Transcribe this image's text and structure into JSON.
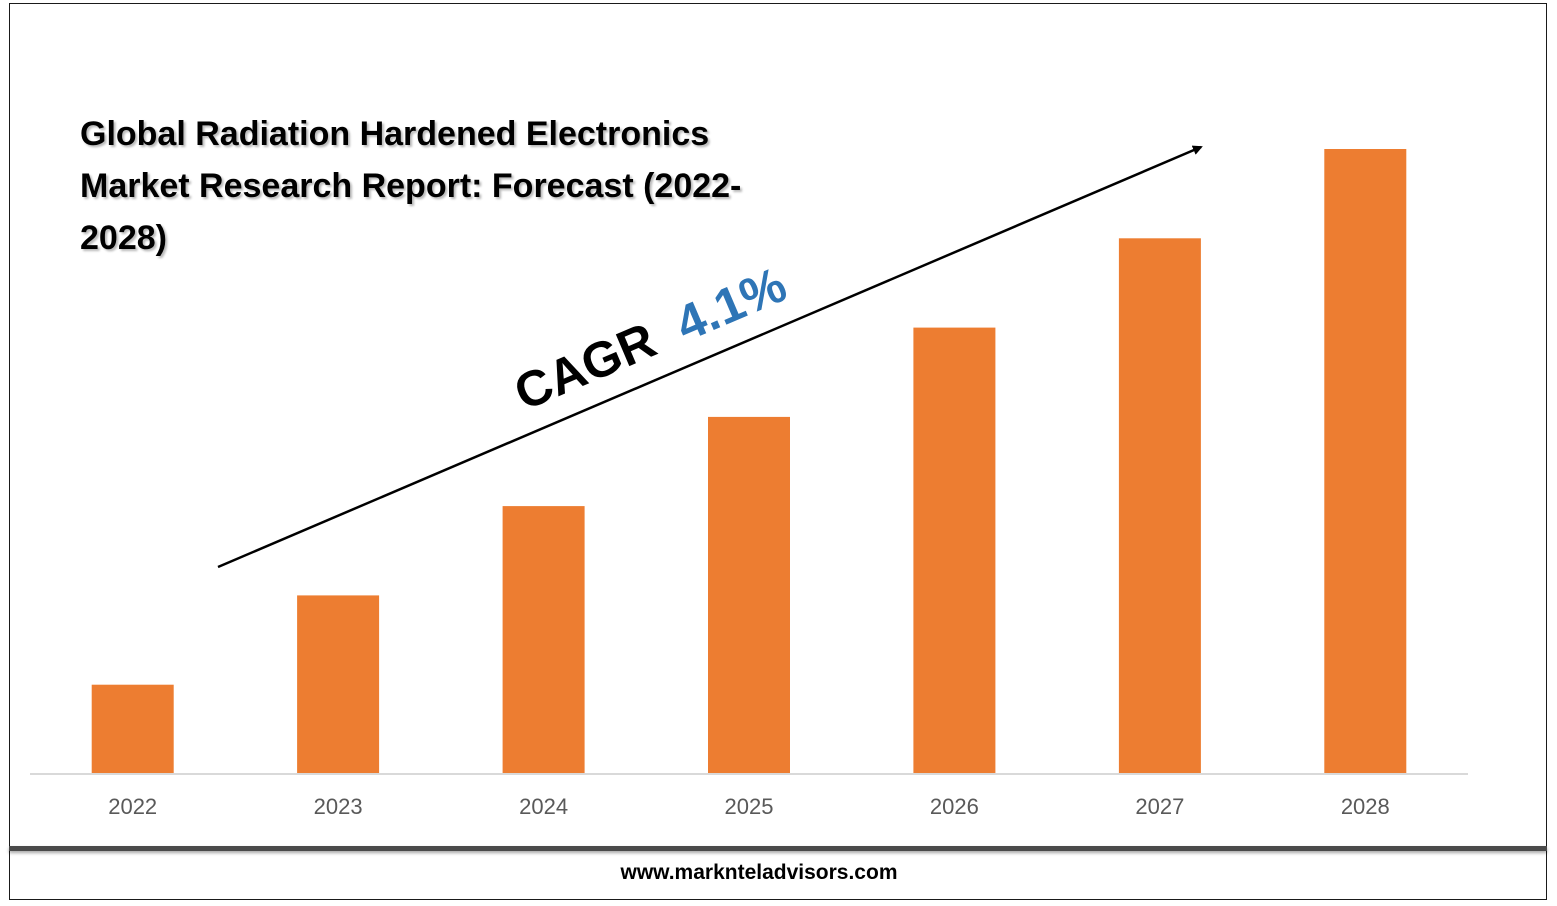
{
  "chart_data": {
    "type": "bar",
    "title": "Global Radiation Hardened Electronics Market Research Report: Forecast (2022-2028)",
    "categories": [
      "2022",
      "2023",
      "2024",
      "2025",
      "2026",
      "2027",
      "2028"
    ],
    "values": [
      1,
      2,
      3,
      4,
      5,
      6,
      7
    ],
    "ylim": [
      0,
      7
    ],
    "grid": false,
    "bar_color": "#ED7D31",
    "annotation": {
      "prefix": "CAGR",
      "value": "4.1%",
      "prefix_color": "#000000",
      "value_color": "#2E75B6",
      "arrow": "up-right"
    }
  },
  "footer": {
    "website": "www.marknteladvisors.com"
  }
}
